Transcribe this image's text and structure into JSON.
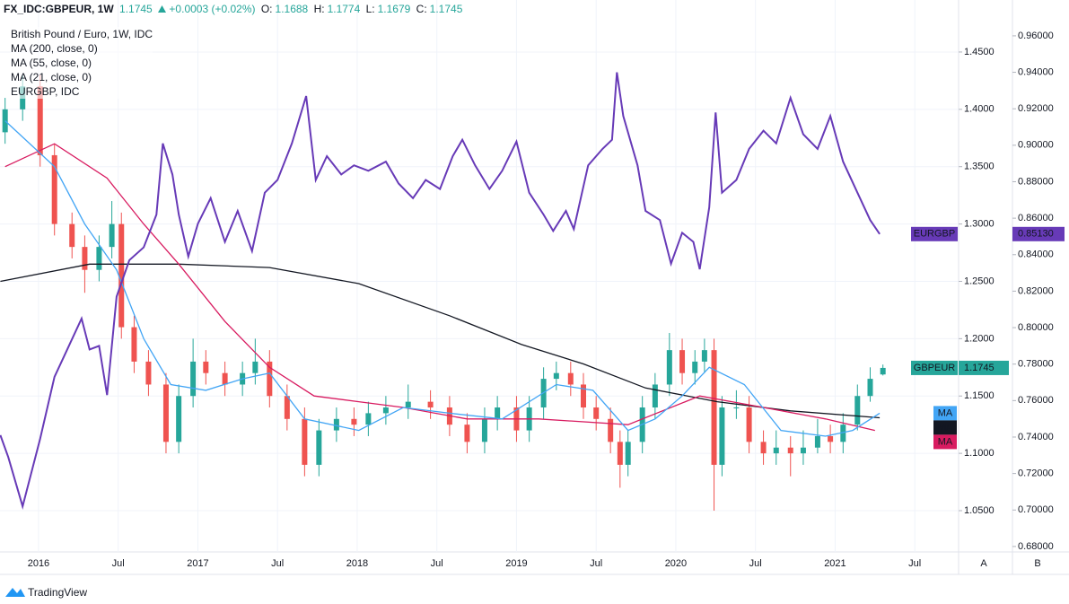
{
  "header": {
    "symbol": "FX_IDC:GBPEUR, 1W",
    "change": "+0.0003 (+0.02%)",
    "ohlc_labels": [
      "O:",
      "H:",
      "L:",
      "C:"
    ]
  },
  "ui": {
    "axis_buttons": [
      "A",
      "B"
    ],
    "brand": "TradingView"
  },
  "chart_data": {
    "type": "candlestick",
    "title": "British Pound / Euro, 1W, IDC",
    "badge": "GBPEUR",
    "up_color": "#26a69a",
    "down_color": "#ef5350",
    "x": [
      2015.79,
      2015.9,
      2016.01,
      2016.1,
      2016.21,
      2016.29,
      2016.38,
      2016.46,
      2016.52,
      2016.6,
      2016.69,
      2016.8,
      2016.88,
      2016.97,
      2017.05,
      2017.17,
      2017.28,
      2017.36,
      2017.45,
      2017.56,
      2017.67,
      2017.76,
      2017.87,
      2017.98,
      2018.07,
      2018.18,
      2018.32,
      2018.46,
      2018.58,
      2018.69,
      2018.8,
      2018.88,
      2019.0,
      2019.08,
      2019.17,
      2019.25,
      2019.34,
      2019.42,
      2019.5,
      2019.59,
      2019.65,
      2019.7,
      2019.79,
      2019.87,
      2019.96,
      2020.04,
      2020.12,
      2020.18,
      2020.24,
      2020.29,
      2020.38,
      2020.46,
      2020.55,
      2020.63,
      2020.72,
      2020.8,
      2020.89,
      2020.97,
      2021.05,
      2021.14,
      2021.22,
      2021.3
    ],
    "open": [
      1.38,
      1.4,
      1.42,
      1.36,
      1.3,
      1.28,
      1.26,
      1.28,
      1.3,
      1.21,
      1.18,
      1.16,
      1.11,
      1.15,
      1.18,
      1.17,
      1.16,
      1.17,
      1.18,
      1.15,
      1.13,
      1.09,
      1.12,
      1.13,
      1.125,
      1.135,
      1.14,
      1.145,
      1.14,
      1.125,
      1.11,
      1.13,
      1.14,
      1.12,
      1.14,
      1.165,
      1.17,
      1.16,
      1.14,
      1.13,
      1.11,
      1.09,
      1.11,
      1.14,
      1.16,
      1.19,
      1.17,
      1.18,
      1.19,
      1.09,
      1.14,
      1.14,
      1.11,
      1.1,
      1.105,
      1.1,
      1.105,
      1.115,
      1.11,
      1.125,
      1.15,
      1.1688
    ],
    "high": [
      1.41,
      1.43,
      1.43,
      1.37,
      1.31,
      1.29,
      1.29,
      1.32,
      1.31,
      1.22,
      1.19,
      1.17,
      1.16,
      1.2,
      1.19,
      1.18,
      1.18,
      1.2,
      1.19,
      1.16,
      1.14,
      1.13,
      1.14,
      1.14,
      1.145,
      1.15,
      1.16,
      1.155,
      1.15,
      1.135,
      1.14,
      1.15,
      1.15,
      1.15,
      1.175,
      1.18,
      1.18,
      1.17,
      1.15,
      1.14,
      1.12,
      1.12,
      1.15,
      1.17,
      1.205,
      1.2,
      1.19,
      1.2,
      1.2,
      1.15,
      1.155,
      1.15,
      1.12,
      1.12,
      1.115,
      1.12,
      1.13,
      1.125,
      1.135,
      1.16,
      1.175,
      1.1774
    ],
    "low": [
      1.37,
      1.39,
      1.35,
      1.29,
      1.27,
      1.24,
      1.25,
      1.27,
      1.2,
      1.17,
      1.15,
      1.1,
      1.1,
      1.14,
      1.16,
      1.15,
      1.15,
      1.16,
      1.14,
      1.12,
      1.08,
      1.08,
      1.11,
      1.115,
      1.115,
      1.125,
      1.13,
      1.13,
      1.115,
      1.1,
      1.1,
      1.12,
      1.11,
      1.11,
      1.13,
      1.155,
      1.15,
      1.13,
      1.12,
      1.1,
      1.07,
      1.08,
      1.1,
      1.13,
      1.15,
      1.16,
      1.16,
      1.17,
      1.05,
      1.08,
      1.13,
      1.1,
      1.09,
      1.09,
      1.08,
      1.09,
      1.1,
      1.1,
      1.1,
      1.12,
      1.145,
      1.1679
    ],
    "close": [
      1.4,
      1.42,
      1.36,
      1.3,
      1.28,
      1.26,
      1.28,
      1.3,
      1.21,
      1.18,
      1.16,
      1.11,
      1.15,
      1.18,
      1.17,
      1.16,
      1.17,
      1.18,
      1.15,
      1.13,
      1.09,
      1.12,
      1.13,
      1.125,
      1.135,
      1.14,
      1.145,
      1.14,
      1.125,
      1.11,
      1.13,
      1.14,
      1.12,
      1.14,
      1.165,
      1.17,
      1.16,
      1.14,
      1.13,
      1.11,
      1.09,
      1.11,
      1.14,
      1.16,
      1.19,
      1.17,
      1.18,
      1.19,
      1.09,
      1.14,
      1.14,
      1.11,
      1.1,
      1.105,
      1.1,
      1.105,
      1.115,
      1.11,
      1.125,
      1.15,
      1.165,
      1.1745
    ],
    "series": [
      {
        "name": "MA (200, close, 0)",
        "badge": "MA",
        "color": "#131722",
        "x": [
          2015.76,
          2016.32,
          2016.88,
          2017.45,
          2018.01,
          2018.58,
          2019.03,
          2019.42,
          2019.81,
          2020.26,
          2020.72,
          2021.28
        ],
        "values": [
          1.25,
          1.265,
          1.265,
          1.262,
          1.248,
          1.22,
          1.195,
          1.178,
          1.157,
          1.145,
          1.137,
          1.131
        ]
      },
      {
        "name": "MA (55, close, 0)",
        "badge": "MA",
        "color": "#d81b60",
        "x": [
          2015.79,
          2016.1,
          2016.43,
          2016.66,
          2016.88,
          2017.17,
          2017.45,
          2017.73,
          2018.01,
          2018.29,
          2018.69,
          2019.14,
          2019.7,
          2020.15,
          2020.55,
          2020.94,
          2021.25
        ],
        "values": [
          1.35,
          1.37,
          1.34,
          1.3,
          1.265,
          1.215,
          1.175,
          1.15,
          1.145,
          1.14,
          1.13,
          1.13,
          1.125,
          1.15,
          1.14,
          1.13,
          1.12
        ]
      },
      {
        "name": "MA (21, close, 0)",
        "badge": "MA",
        "color": "#42a5f5",
        "x": [
          2015.79,
          2016.1,
          2016.29,
          2016.49,
          2016.66,
          2016.83,
          2017.05,
          2017.28,
          2017.45,
          2017.67,
          2018.01,
          2018.29,
          2018.58,
          2018.91,
          2019.25,
          2019.48,
          2019.7,
          2019.87,
          2020.04,
          2020.21,
          2020.43,
          2020.66,
          2020.94,
          2021.11,
          2021.28
        ],
        "values": [
          1.39,
          1.35,
          1.3,
          1.26,
          1.2,
          1.16,
          1.155,
          1.165,
          1.17,
          1.13,
          1.12,
          1.14,
          1.135,
          1.13,
          1.16,
          1.155,
          1.12,
          1.13,
          1.15,
          1.175,
          1.16,
          1.12,
          1.115,
          1.12,
          1.135
        ]
      },
      {
        "name": "EURGBP, IDC",
        "badge": "EURGBP",
        "axis": "y2",
        "color": "#673ab7",
        "last_value_label": "0.85130",
        "x": [
          2015.76,
          2015.81,
          2015.9,
          2016.01,
          2016.1,
          2016.18,
          2016.27,
          2016.32,
          2016.38,
          2016.43,
          2016.49,
          2016.57,
          2016.66,
          2016.74,
          2016.78,
          2016.84,
          2016.88,
          2016.94,
          2017.0,
          2017.08,
          2017.17,
          2017.25,
          2017.34,
          2017.42,
          2017.5,
          2017.59,
          2017.68,
          2017.74,
          2017.81,
          2017.9,
          2017.98,
          2018.07,
          2018.18,
          2018.26,
          2018.35,
          2018.43,
          2018.52,
          2018.6,
          2018.66,
          2018.74,
          2018.83,
          2018.91,
          2019.0,
          2019.08,
          2019.17,
          2019.23,
          2019.31,
          2019.36,
          2019.45,
          2019.54,
          2019.6,
          2019.63,
          2019.67,
          2019.76,
          2019.81,
          2019.9,
          2019.97,
          2020.04,
          2020.11,
          2020.15,
          2020.21,
          2020.25,
          2020.29,
          2020.38,
          2020.46,
          2020.55,
          2020.63,
          2020.72,
          2020.8,
          2020.89,
          2020.97,
          2021.05,
          2021.14,
          2021.22,
          2021.28
        ],
        "values": [
          0.741,
          0.729,
          0.702,
          0.739,
          0.773,
          0.788,
          0.805,
          0.788,
          0.79,
          0.763,
          0.817,
          0.837,
          0.844,
          0.862,
          0.901,
          0.884,
          0.862,
          0.839,
          0.857,
          0.871,
          0.847,
          0.864,
          0.842,
          0.874,
          0.881,
          0.901,
          0.927,
          0.881,
          0.894,
          0.884,
          0.889,
          0.886,
          0.891,
          0.879,
          0.871,
          0.881,
          0.876,
          0.894,
          0.903,
          0.889,
          0.876,
          0.886,
          0.902,
          0.874,
          0.862,
          0.853,
          0.864,
          0.854,
          0.889,
          0.898,
          0.903,
          0.94,
          0.916,
          0.889,
          0.864,
          0.859,
          0.835,
          0.852,
          0.847,
          0.832,
          0.866,
          0.918,
          0.874,
          0.881,
          0.898,
          0.908,
          0.901,
          0.926,
          0.906,
          0.898,
          0.916,
          0.891,
          0.874,
          0.859,
          0.8513
        ]
      }
    ],
    "xlim": [
      2015.758,
      2021.775
    ],
    "xticks": [
      2016,
      {
        "value": 2016.5,
        "label": "Jul"
      },
      2017,
      {
        "value": 2017.5,
        "label": "Jul"
      },
      2018,
      {
        "value": 2018.5,
        "label": "Jul"
      },
      2019,
      {
        "value": 2019.5,
        "label": "Jul"
      },
      2020,
      {
        "value": 2020.5,
        "label": "Jul"
      },
      2021,
      {
        "value": 2021.5,
        "label": "Jul"
      }
    ],
    "ylim": [
      1.014,
      1.4797
    ],
    "yticks": [
      {
        "value": 1.05,
        "label": "1.0500"
      },
      {
        "value": 1.1,
        "label": "1.1000"
      },
      {
        "value": 1.15,
        "label": "1.1500"
      },
      {
        "value": 1.2,
        "label": "1.2000"
      },
      {
        "value": 1.25,
        "label": "1.2500"
      },
      {
        "value": 1.3,
        "label": "1.3000"
      },
      {
        "value": 1.35,
        "label": "1.3500"
      },
      {
        "value": 1.4,
        "label": "1.4000"
      },
      {
        "value": 1.45,
        "label": "1.4500"
      }
    ],
    "y2lim": [
      0.677,
      0.9698
    ],
    "y2ticks": [
      {
        "value": 0.68,
        "label": "0.68000"
      },
      {
        "value": 0.7,
        "label": "0.70000"
      },
      {
        "value": 0.72,
        "label": "0.72000"
      },
      {
        "value": 0.74,
        "label": "0.74000"
      },
      {
        "value": 0.76,
        "label": "0.76000"
      },
      {
        "value": 0.78,
        "label": "0.78000"
      },
      {
        "value": 0.8,
        "label": "0.80000"
      },
      {
        "value": 0.82,
        "label": "0.82000"
      },
      {
        "value": 0.84,
        "label": "0.84000"
      },
      {
        "value": 0.86,
        "label": "0.86000"
      },
      {
        "value": 0.88,
        "label": "0.88000"
      },
      {
        "value": 0.9,
        "label": "0.90000"
      },
      {
        "value": 0.92,
        "label": "0.92000"
      },
      {
        "value": 0.94,
        "label": "0.94000"
      },
      {
        "value": 0.96,
        "label": "0.96000"
      }
    ],
    "grid": true
  }
}
